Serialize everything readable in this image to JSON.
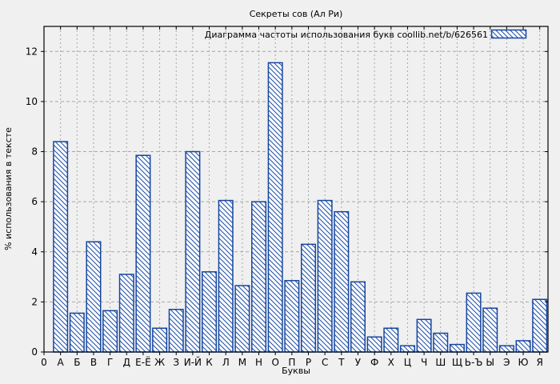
{
  "chart_data": {
    "type": "bar",
    "title": "Секреты сов (Ал Ри)",
    "legend": "Диаграмма частоты использования букв coollib.net/b/626561",
    "xlabel": "Буквы",
    "ylabel": "% использования в тексте",
    "origin_tick_label": "0",
    "categories": [
      "А",
      "Б",
      "В",
      "Г",
      "Д",
      "Е-Ё",
      "Ж",
      "З",
      "И-Й",
      "К",
      "Л",
      "М",
      "Н",
      "О",
      "П",
      "Р",
      "С",
      "Т",
      "У",
      "Ф",
      "Х",
      "Ц",
      "Ч",
      "Ш",
      "Щ",
      "Ь-Ъ",
      "Ы",
      "Э",
      "Ю",
      "Я"
    ],
    "values": [
      8.4,
      1.55,
      4.4,
      1.65,
      3.1,
      7.85,
      0.95,
      1.7,
      8.0,
      3.2,
      6.05,
      2.65,
      6.0,
      11.55,
      2.85,
      4.3,
      6.05,
      5.6,
      2.8,
      0.6,
      0.95,
      0.25,
      1.3,
      0.75,
      0.3,
      2.35,
      1.75,
      0.25,
      0.45,
      2.1
    ],
    "yticks": [
      0,
      2,
      4,
      6,
      8,
      10,
      12
    ],
    "ylim": [
      0,
      13
    ],
    "grid": true,
    "legend_position": "top-right-inside",
    "hatch_style": "backslash-diagonal",
    "colors": {
      "bar_border": "#1646a0",
      "bar_hatch": "#1d4fa8",
      "bar_fill": "#fdfdfd",
      "background": "#f0f0f0",
      "grid": "#a6a6a6",
      "axis": "#000000",
      "text": "#000000"
    }
  }
}
